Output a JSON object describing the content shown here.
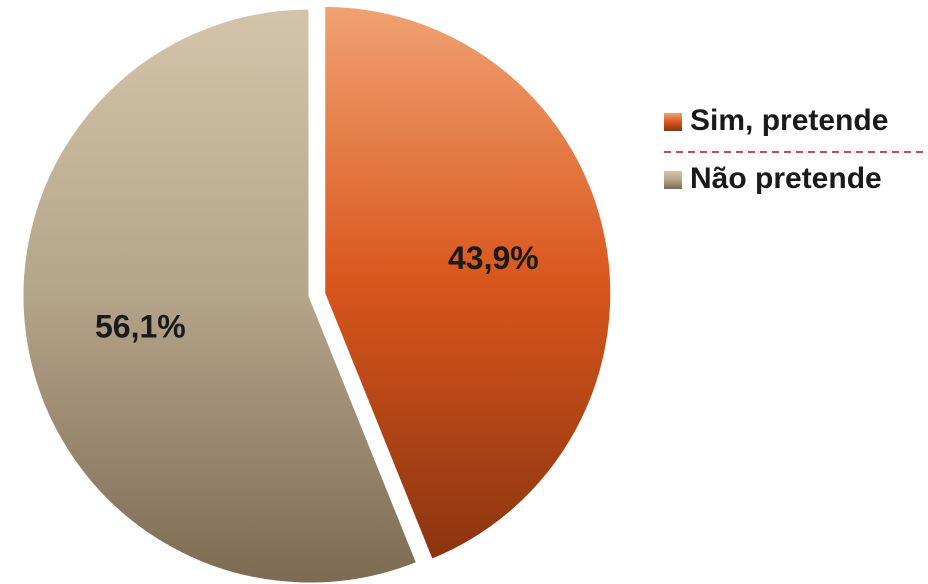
{
  "chart_data": {
    "type": "pie",
    "title": "",
    "slices": [
      {
        "label": "Sim, pretende",
        "value": 43.9,
        "value_label": "43,9%",
        "color": "#d9561c",
        "color_light": "#f0a272",
        "color_dark": "#8a3410",
        "exploded": true
      },
      {
        "label": "Não pretende",
        "value": 56.1,
        "value_label": "56,1%",
        "color": "#b4a48a",
        "color_light": "#d3c4ab",
        "color_dark": "#7d6a53",
        "exploded": false
      }
    ],
    "legend": {
      "position": "right",
      "separator_color": "#c0504d"
    }
  }
}
